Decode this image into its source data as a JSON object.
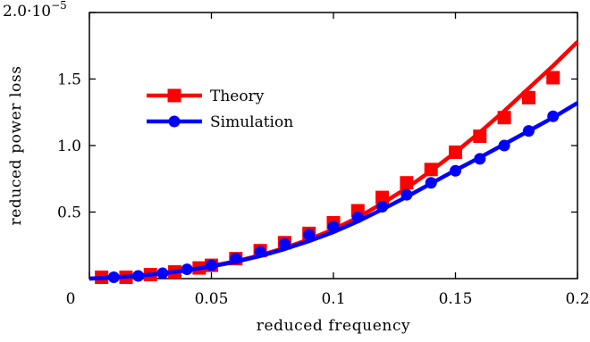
{
  "chart_data": {
    "type": "line",
    "xlabel": "reduced frequency",
    "ylabel": "reduced power loss",
    "xlim": [
      0,
      0.2
    ],
    "ylim": [
      0,
      2e-05
    ],
    "x_ticks": [
      0,
      0.05,
      0.1,
      0.15,
      0.2
    ],
    "x_tick_labels": [
      "0",
      "0.05",
      "0.1",
      "0.15",
      "0.2"
    ],
    "y_ticks": [
      5e-06,
      1e-05,
      1.5e-05,
      2e-05
    ],
    "y_tick_labels": [
      "0.5",
      "1.0",
      "1.5",
      "2.0·10"
    ],
    "y_exponent": "−5",
    "legend_position": "upper-left",
    "grid": false,
    "series": [
      {
        "name": "Theory",
        "color": "#ff0000",
        "marker": "square",
        "x": [
          0.005,
          0.015,
          0.025,
          0.035,
          0.045,
          0.055,
          0.065,
          0.075,
          0.085,
          0.095,
          0.105,
          0.115,
          0.125,
          0.135,
          0.145,
          0.155,
          0.165,
          0.175,
          0.185,
          0.195
        ],
        "y": [
          2e-08,
          1.2e-07,
          3e-07,
          5e-07,
          8e-07,
          1.1e-06,
          1.5e-06,
          2e-06,
          2.6e-06,
          3.3e-06,
          4.1e-06,
          5.1e-06,
          6.2e-06,
          7.4e-06,
          8.8e-06,
          1.02e-05,
          1.18e-05,
          1.35e-05,
          1.51e-05,
          1.68e-05
        ],
        "curve_x": [
          0,
          0.01,
          0.02,
          0.03,
          0.04,
          0.05,
          0.06,
          0.07,
          0.08,
          0.09,
          0.1,
          0.11,
          0.12,
          0.13,
          0.14,
          0.15,
          0.16,
          0.17,
          0.18,
          0.19,
          0.2
        ],
        "curve_y": [
          0.0,
          8e-08,
          2.2e-07,
          4e-07,
          6.6e-07,
          9.5e-07,
          1.3e-06,
          1.75e-06,
          2.3e-06,
          2.95e-06,
          3.7e-06,
          4.6e-06,
          5.65e-06,
          6.8e-06,
          8.1e-06,
          9.5e-06,
          1.1e-05,
          1.26e-05,
          1.43e-05,
          1.6e-05,
          1.78e-05
        ],
        "point_x": [
          0.005,
          0.015,
          0.025,
          0.035,
          0.045,
          0.05,
          0.06,
          0.07,
          0.08,
          0.09,
          0.1,
          0.11,
          0.12,
          0.13,
          0.14,
          0.15,
          0.16,
          0.17,
          0.18,
          0.19
        ],
        "point_y": [
          1e-07,
          1e-07,
          3e-07,
          5e-07,
          8e-07,
          1e-06,
          1.5e-06,
          2.1e-06,
          2.7e-06,
          3.4e-06,
          4.2e-06,
          5.1e-06,
          6.1e-06,
          7.2e-06,
          8.2e-06,
          9.5e-06,
          1.07e-05,
          1.21e-05,
          1.36e-05,
          1.51e-05
        ]
      },
      {
        "name": "Simulation",
        "color": "#0000ff",
        "marker": "circle",
        "curve_x": [
          0,
          0.01,
          0.02,
          0.03,
          0.04,
          0.05,
          0.06,
          0.07,
          0.08,
          0.09,
          0.1,
          0.11,
          0.12,
          0.13,
          0.14,
          0.15,
          0.16,
          0.17,
          0.18,
          0.19,
          0.2
        ],
        "curve_y": [
          0.0,
          8e-08,
          2.1e-07,
          3.8e-07,
          6.3e-07,
          9.2e-07,
          1.27e-06,
          1.7e-06,
          2.22e-06,
          2.82e-06,
          3.5e-06,
          4.3e-06,
          5.2e-06,
          6.15e-06,
          7.15e-06,
          8.15e-06,
          9.1e-06,
          1.01e-05,
          1.11e-05,
          1.21e-05,
          1.32e-05
        ],
        "point_x": [
          0.01,
          0.02,
          0.03,
          0.04,
          0.05,
          0.06,
          0.07,
          0.08,
          0.09,
          0.1,
          0.11,
          0.12,
          0.13,
          0.14,
          0.15,
          0.16,
          0.17,
          0.18,
          0.19
        ],
        "point_y": [
          1e-07,
          2e-07,
          4e-07,
          7e-07,
          1e-06,
          1.5e-06,
          2e-06,
          2.6e-06,
          3.3e-06,
          3.9e-06,
          4.6e-06,
          5.4e-06,
          6.3e-06,
          7.2e-06,
          8.1e-06,
          9e-06,
          1e-05,
          1.11e-05,
          1.22e-05
        ]
      }
    ]
  }
}
